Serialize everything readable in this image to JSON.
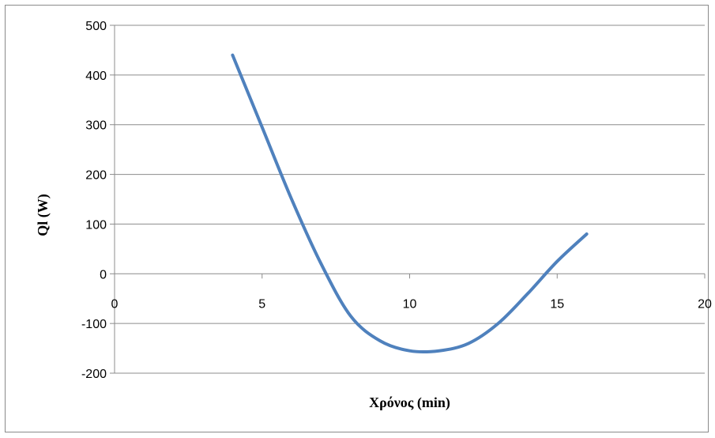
{
  "chart_data": {
    "type": "line",
    "title": "",
    "xlabel": "Χρόνος (min)",
    "ylabel": "Ql (W)",
    "xlim": [
      0,
      20
    ],
    "ylim": [
      -200,
      500
    ],
    "x_ticks": [
      0,
      5,
      10,
      15,
      20
    ],
    "y_ticks": [
      500,
      400,
      300,
      200,
      100,
      0,
      -100,
      -200
    ],
    "grid": true,
    "legend": "none",
    "series": [
      {
        "color": "#4f81bd",
        "smooth": true,
        "x": [
          4,
          5,
          6,
          7,
          8,
          9,
          10,
          11,
          12,
          13,
          14,
          15,
          16
        ],
        "y": [
          440,
          295,
          150,
          20,
          -85,
          -135,
          -155,
          -155,
          -140,
          -100,
          -40,
          25,
          80
        ]
      }
    ]
  }
}
